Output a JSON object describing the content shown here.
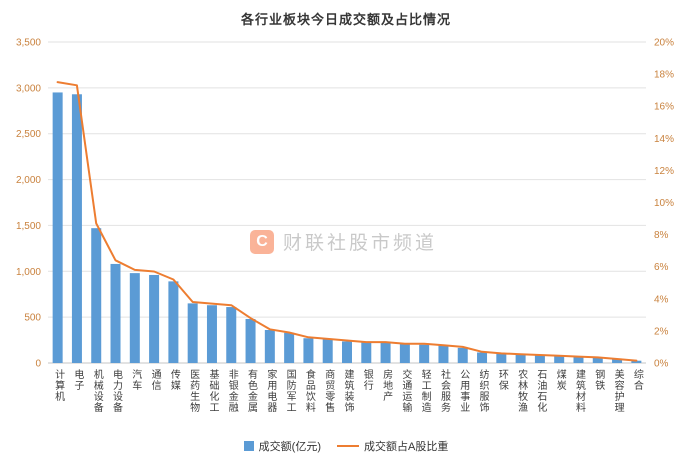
{
  "watermark": {
    "logo_letter": "C",
    "text": "财联社股市频道"
  },
  "chart_data": {
    "type": "bar",
    "title": "各行业板块今日成交额及占比情况",
    "categories": [
      "计算机",
      "电子",
      "机械设备",
      "电力设备",
      "汽车",
      "通信",
      "传媒",
      "医药生物",
      "基础化工",
      "非银金融",
      "有色金属",
      "家用电器",
      "国防军工",
      "食品饮料",
      "商贸零售",
      "建筑装饰",
      "银行",
      "房地产",
      "交通运输",
      "轻工制造",
      "社会服务",
      "公用事业",
      "纺织服饰",
      "环保",
      "农林牧渔",
      "石油石化",
      "煤炭",
      "建筑材料",
      "钢铁",
      "美容护理",
      "综合"
    ],
    "series": [
      {
        "name": "成交额(亿元)",
        "type": "bar",
        "axis": "left",
        "values": [
          2950,
          2930,
          1470,
          1080,
          980,
          960,
          890,
          650,
          630,
          610,
          480,
          360,
          330,
          270,
          260,
          235,
          225,
          220,
          210,
          200,
          190,
          165,
          115,
          105,
          95,
          90,
          75,
          70,
          60,
          45,
          25
        ]
      },
      {
        "name": "成交额占A股比重",
        "type": "line",
        "axis": "right",
        "values": [
          17.5,
          17.3,
          8.7,
          6.4,
          5.8,
          5.7,
          5.2,
          3.8,
          3.7,
          3.6,
          2.8,
          2.1,
          1.9,
          1.6,
          1.5,
          1.4,
          1.3,
          1.3,
          1.2,
          1.2,
          1.1,
          1.0,
          0.7,
          0.6,
          0.55,
          0.5,
          0.45,
          0.4,
          0.35,
          0.25,
          0.15
        ]
      }
    ],
    "left_axis": {
      "min": 0,
      "max": 3500,
      "step": 500,
      "tick_labels": [
        "0",
        "500",
        "1,000",
        "1,500",
        "2,000",
        "2,500",
        "3,000",
        "3,500"
      ]
    },
    "right_axis": {
      "min": 0,
      "max": 20,
      "step": 2,
      "tick_labels": [
        "0%",
        "2%",
        "4%",
        "6%",
        "8%",
        "10%",
        "12%",
        "14%",
        "16%",
        "18%",
        "20%"
      ]
    },
    "legend_position": "bottom",
    "grid": true,
    "colors": {
      "bar": "#5B9BD5",
      "line": "#ED7D31",
      "axis_label": "#C9823E",
      "grid": "#E2E2E2",
      "axis_line": "#C6C6C6",
      "title": "#363636",
      "category_label": "#3D3D3D"
    }
  }
}
